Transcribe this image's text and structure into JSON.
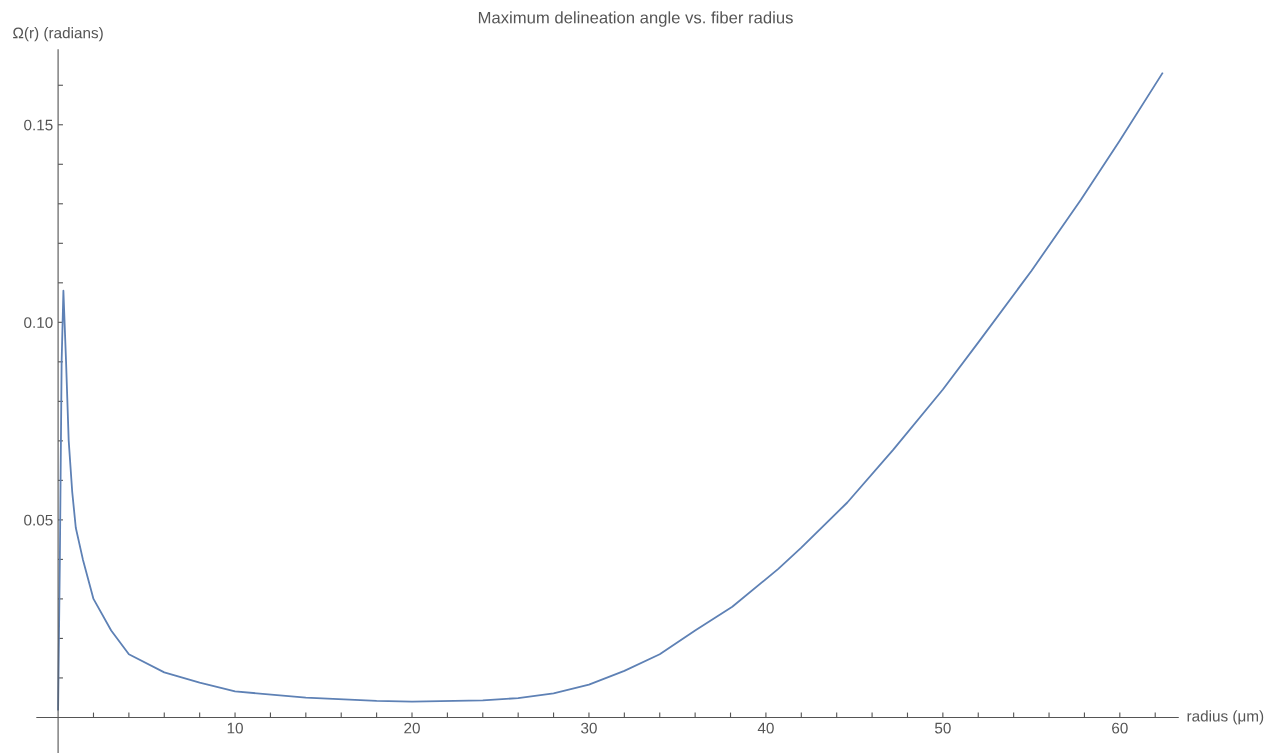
{
  "chart_data": {
    "type": "line",
    "title": "Maximum delineation angle vs. fiber radius",
    "xlabel": "radius (μm)",
    "ylabel": "Ω(r) (radians)",
    "x": [
      0,
      0.1,
      0.2,
      0.3,
      0.45,
      0.6,
      0.8,
      1.0,
      1.4,
      2,
      3,
      4,
      6,
      8,
      10,
      14,
      18,
      20,
      24,
      26,
      28,
      30,
      32,
      34,
      36,
      38.1,
      40.7,
      42,
      44.6,
      47.2,
      50,
      52.1,
      55,
      57.8,
      60,
      62.4
    ],
    "series": [
      {
        "color": "#5e81b5",
        "values": [
          0.002,
          0.04,
          0.09,
          0.108,
          0.09,
          0.07,
          0.057,
          0.048,
          0.04,
          0.03,
          0.022,
          0.016,
          0.0114,
          0.0088,
          0.0066,
          0.005,
          0.0042,
          0.004,
          0.0043,
          0.0049,
          0.0061,
          0.0083,
          0.0118,
          0.016,
          0.022,
          0.028,
          0.0376,
          0.043,
          0.0544,
          0.0678,
          0.083,
          0.0955,
          0.113,
          0.131,
          0.146,
          0.163
        ]
      }
    ],
    "xlim": [
      -1.2,
      63.3
    ],
    "ylim": [
      -0.009,
      0.169
    ],
    "xticks": [
      {
        "value": 2,
        "label": null
      },
      {
        "value": 4,
        "label": null
      },
      {
        "value": 6,
        "label": null
      },
      {
        "value": 8,
        "label": null
      },
      10,
      {
        "value": 12,
        "label": null
      },
      {
        "value": 14,
        "label": null
      },
      {
        "value": 16,
        "label": null
      },
      {
        "value": 18,
        "label": null
      },
      20,
      {
        "value": 22,
        "label": null
      },
      {
        "value": 24,
        "label": null
      },
      {
        "value": 26,
        "label": null
      },
      {
        "value": 28,
        "label": null
      },
      30,
      {
        "value": 32,
        "label": null
      },
      {
        "value": 34,
        "label": null
      },
      {
        "value": 36,
        "label": null
      },
      {
        "value": 38,
        "label": null
      },
      40,
      {
        "value": 42,
        "label": null
      },
      {
        "value": 44,
        "label": null
      },
      {
        "value": 46,
        "label": null
      },
      {
        "value": 48,
        "label": null
      },
      50,
      {
        "value": 52,
        "label": null
      },
      {
        "value": 54,
        "label": null
      },
      {
        "value": 56,
        "label": null
      },
      {
        "value": 58,
        "label": null
      },
      60,
      {
        "value": 62,
        "label": null
      }
    ],
    "yticks": [
      {
        "value": 0.01,
        "label": null
      },
      {
        "value": 0.02,
        "label": null
      },
      {
        "value": 0.03,
        "label": null
      },
      {
        "value": 0.04,
        "label": null
      },
      0.05,
      {
        "value": 0.06,
        "label": null
      },
      {
        "value": 0.07,
        "label": null
      },
      {
        "value": 0.08,
        "label": null
      },
      {
        "value": 0.09,
        "label": null
      },
      {
        "value": 0.1,
        "label": "0.10"
      },
      {
        "value": 0.11,
        "label": null
      },
      {
        "value": 0.12,
        "label": null
      },
      {
        "value": 0.13,
        "label": null
      },
      {
        "value": 0.14,
        "label": null
      },
      0.15,
      {
        "value": 0.16,
        "label": null
      }
    ],
    "grid": false,
    "marker": "none",
    "line_style": "solid"
  }
}
